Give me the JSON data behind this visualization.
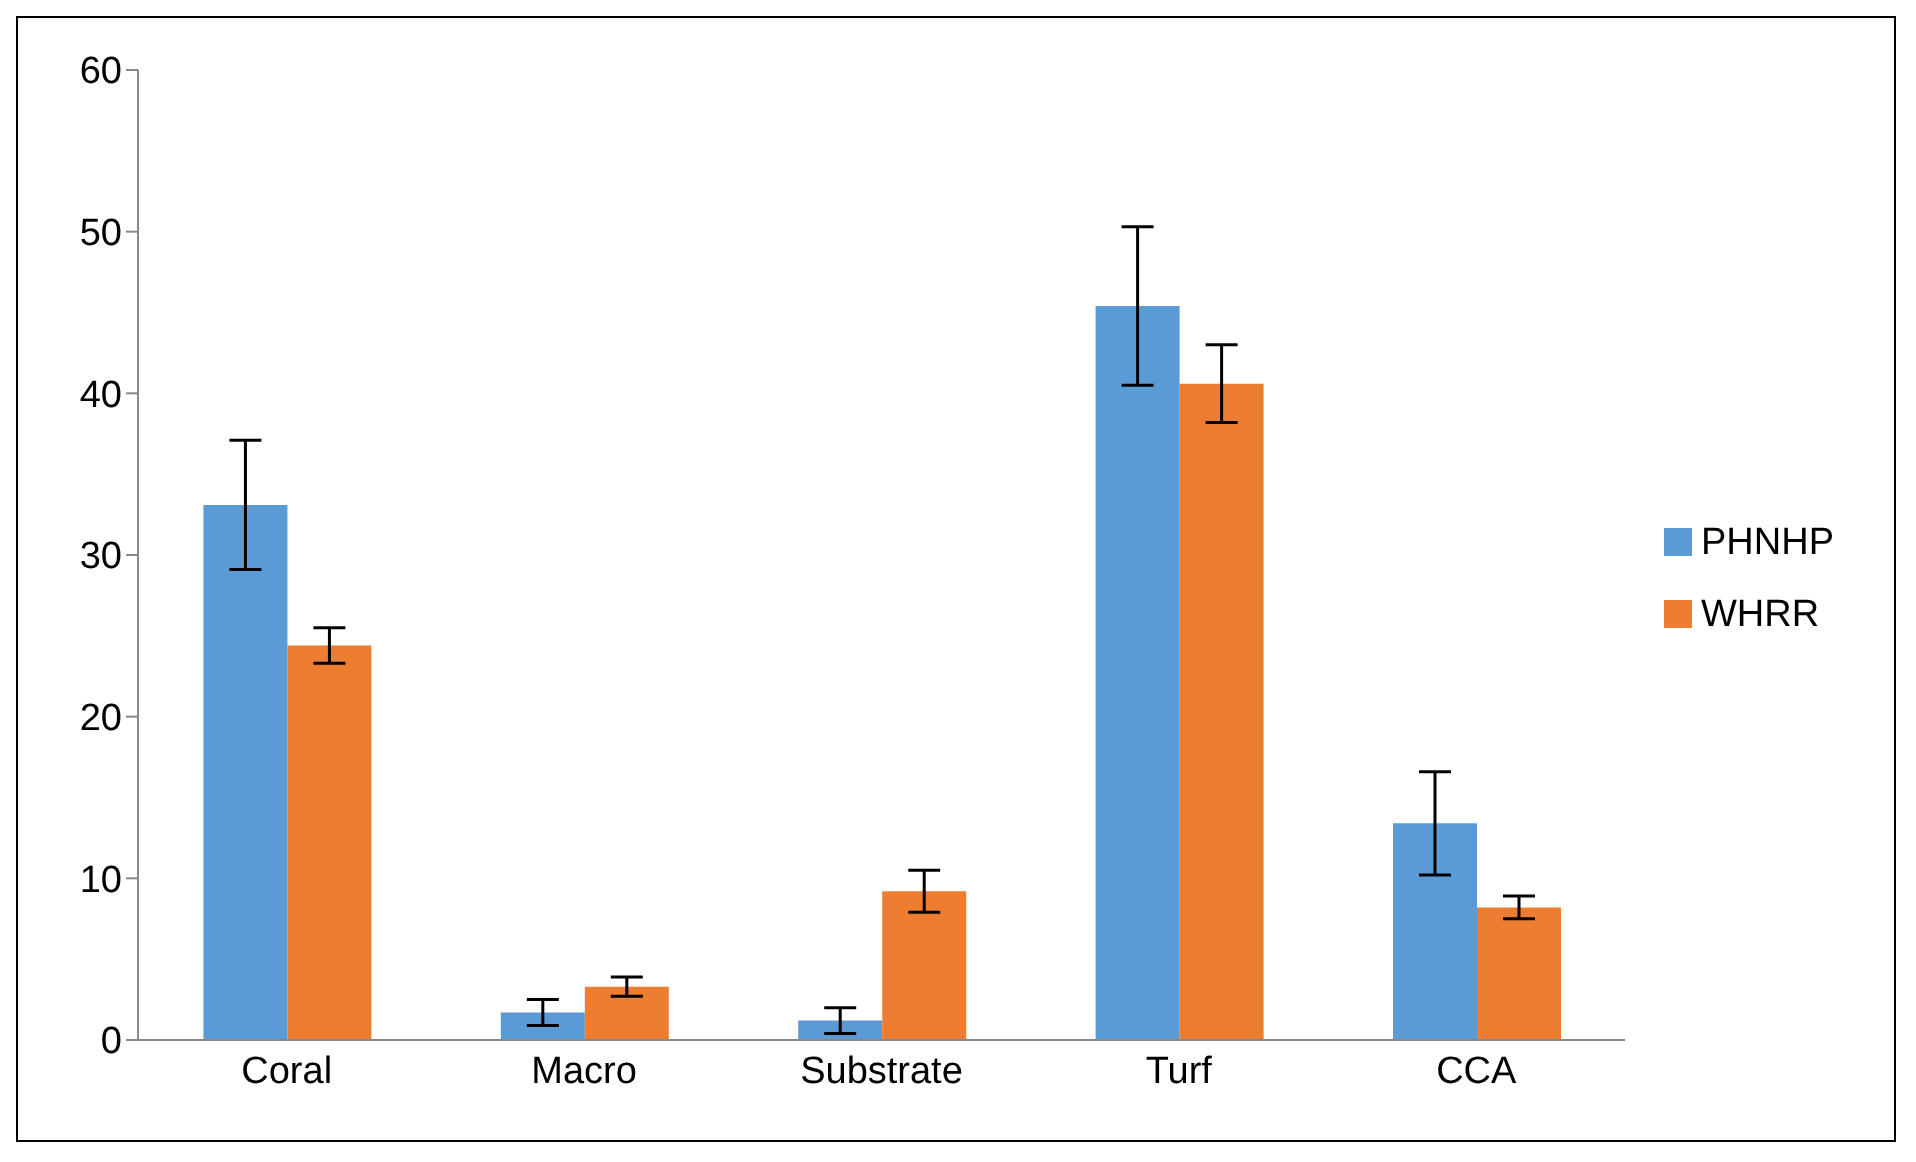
{
  "chart_data": {
    "type": "bar",
    "categories": [
      "Coral",
      "Macro",
      "Substrate",
      "Turf",
      "CCA"
    ],
    "series": [
      {
        "name": "PHNHP",
        "color": "#5b9bd5",
        "values": [
          33.1,
          1.7,
          1.2,
          45.4,
          13.4
        ],
        "errors": [
          4.0,
          0.8,
          0.8,
          4.9,
          3.2
        ]
      },
      {
        "name": "WHRR",
        "color": "#ed7d31",
        "values": [
          24.4,
          3.3,
          9.2,
          40.6,
          8.2
        ],
        "errors": [
          1.1,
          0.6,
          1.3,
          2.4,
          0.7
        ]
      }
    ],
    "ylim": [
      0,
      60
    ],
    "yticks": [
      0,
      10,
      20,
      30,
      40,
      50,
      60
    ],
    "grid": false,
    "legend": "right"
  }
}
